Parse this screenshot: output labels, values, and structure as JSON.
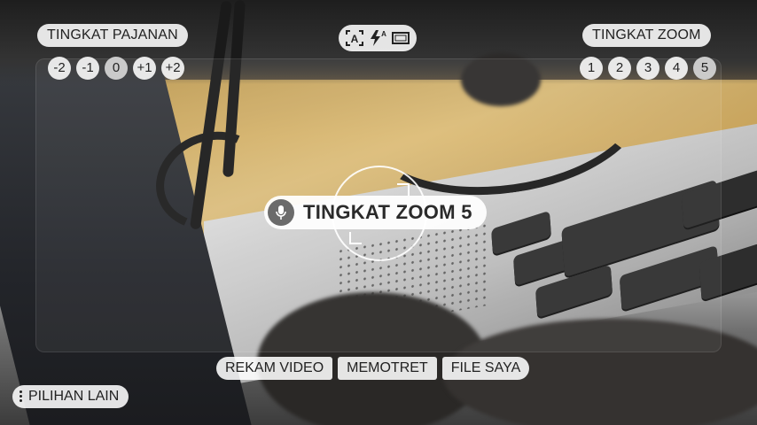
{
  "exposure": {
    "title": "TINGKAT PAJANAN",
    "levels": [
      "-2",
      "-1",
      "0",
      "+1",
      "+2"
    ],
    "selected": "0"
  },
  "zoom": {
    "title": "TINGKAT ZOOM",
    "levels": [
      "1",
      "2",
      "3",
      "4",
      "5"
    ],
    "selected": "5"
  },
  "top_toolbar": {
    "icons": [
      "auto-scene-icon",
      "flash-auto-icon",
      "aspect-ratio-icon"
    ]
  },
  "toast": {
    "icon": "mic-icon",
    "text": "TINGKAT ZOOM 5"
  },
  "modes": {
    "record_video": "REKAM VIDEO",
    "take_photo": "MEMOTRET",
    "my_files": "FILE SAYA"
  },
  "more_options": {
    "icon": "more-vert-icon",
    "label": "PILIHAN LAIN"
  },
  "colors": {
    "pill_bg": "#f2f2f2",
    "text": "#222222",
    "mic_bg": "#6b6b6b"
  }
}
